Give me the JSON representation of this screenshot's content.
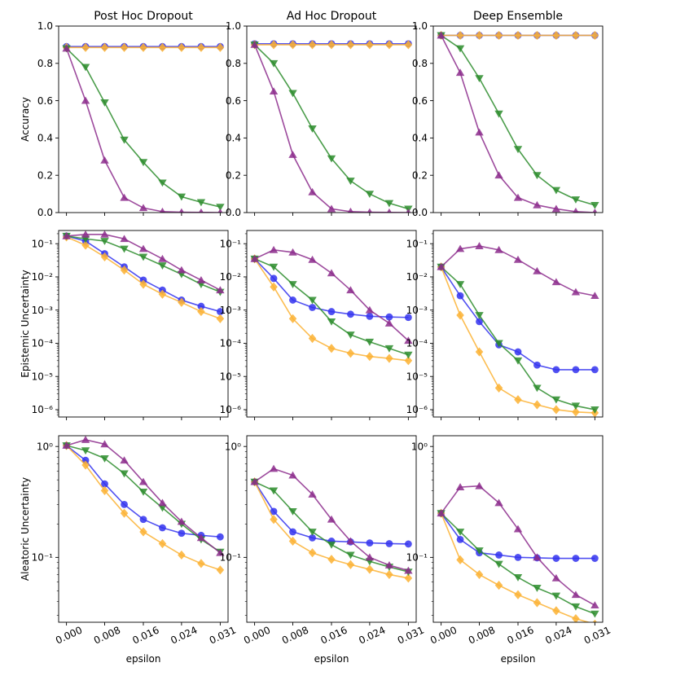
{
  "chart_data": {
    "type": "line",
    "layout": "3x3 grid, columns share x-axis",
    "x": [
      0.0,
      0.0039,
      0.0078,
      0.0118,
      0.0157,
      0.0196,
      0.0235,
      0.0275,
      0.0314
    ],
    "xticks": [
      0.0,
      0.0078,
      0.0157,
      0.0235,
      0.0314
    ],
    "xtick_labels": [
      "0.000",
      "0.008",
      "0.016",
      "0.024",
      "0.031"
    ],
    "xlabel": "epsilon",
    "xlim": [
      -0.0016,
      0.033
    ],
    "columns": [
      "Post Hoc Dropout",
      "Ad Hoc Dropout",
      "Deep Ensemble"
    ],
    "series_styles": [
      {
        "name": "series-blue",
        "color": "#3333ee",
        "marker": "circle"
      },
      {
        "name": "series-orange",
        "color": "#fbb233",
        "marker": "diamond"
      },
      {
        "name": "series-green",
        "color": "#2c8c2c",
        "marker": "triangle-down"
      },
      {
        "name": "series-purple",
        "color": "#8c2c8c",
        "marker": "triangle-up"
      }
    ],
    "rows": [
      {
        "ylabel": "Accuracy",
        "scale": "linear",
        "ylim": [
          0.0,
          1.0
        ],
        "yticks": [
          0.0,
          0.2,
          0.4,
          0.6,
          0.8,
          1.0
        ],
        "ytick_labels": [
          "0.0",
          "0.2",
          "0.4",
          "0.6",
          "0.8",
          "1.0"
        ],
        "panels": [
          {
            "series": [
              [
                0.89,
                0.89,
                0.89,
                0.89,
                0.89,
                0.89,
                0.89,
                0.89,
                0.89
              ],
              [
                0.885,
                0.885,
                0.885,
                0.885,
                0.885,
                0.885,
                0.885,
                0.885,
                0.885
              ],
              [
                0.88,
                0.78,
                0.59,
                0.39,
                0.27,
                0.16,
                0.085,
                0.055,
                0.03
              ],
              [
                0.88,
                0.6,
                0.28,
                0.08,
                0.025,
                0.005,
                0.002,
                0.001,
                0.0
              ]
            ]
          },
          {
            "series": [
              [
                0.905,
                0.905,
                0.905,
                0.905,
                0.905,
                0.905,
                0.905,
                0.905,
                0.905
              ],
              [
                0.9,
                0.9,
                0.9,
                0.9,
                0.9,
                0.9,
                0.9,
                0.9,
                0.9
              ],
              [
                0.9,
                0.8,
                0.64,
                0.45,
                0.29,
                0.17,
                0.1,
                0.05,
                0.02
              ],
              [
                0.9,
                0.65,
                0.31,
                0.11,
                0.02,
                0.005,
                0.002,
                0.001,
                0.0
              ]
            ]
          },
          {
            "series": [
              [
                0.95,
                0.95,
                0.95,
                0.95,
                0.95,
                0.95,
                0.95,
                0.95,
                0.95
              ],
              [
                0.95,
                0.95,
                0.95,
                0.95,
                0.95,
                0.95,
                0.95,
                0.95,
                0.95
              ],
              [
                0.95,
                0.88,
                0.72,
                0.53,
                0.34,
                0.2,
                0.12,
                0.07,
                0.04
              ],
              [
                0.95,
                0.75,
                0.43,
                0.2,
                0.08,
                0.04,
                0.02,
                0.005,
                0.0
              ]
            ]
          }
        ]
      },
      {
        "ylabel": "Epistemic Uncertainty",
        "scale": "log",
        "ylim": [
          6e-07,
          0.25
        ],
        "yticks": [
          1e-06,
          1e-05,
          0.0001,
          0.001,
          0.01,
          0.1
        ],
        "ytick_labels": [
          "10⁻⁶",
          "10⁻⁵",
          "10⁻⁴",
          "10⁻³",
          "10⁻²",
          "10⁻¹"
        ],
        "panels": [
          {
            "series": [
              [
                0.17,
                0.12,
                0.05,
                0.02,
                0.008,
                0.004,
                0.002,
                0.0013,
                0.0009
              ],
              [
                0.16,
                0.09,
                0.04,
                0.016,
                0.006,
                0.003,
                0.0017,
                0.0009,
                0.00055
              ],
              [
                0.17,
                0.14,
                0.12,
                0.07,
                0.04,
                0.022,
                0.012,
                0.006,
                0.0035
              ],
              [
                0.17,
                0.19,
                0.19,
                0.14,
                0.07,
                0.035,
                0.016,
                0.008,
                0.004
              ]
            ]
          },
          {
            "series": [
              [
                0.035,
                0.009,
                0.002,
                0.0012,
                0.0009,
                0.00075,
                0.00065,
                0.00062,
                0.0006
              ],
              [
                0.035,
                0.005,
                0.00055,
                0.00014,
                7e-05,
                5e-05,
                4e-05,
                3.5e-05,
                3e-05
              ],
              [
                0.035,
                0.02,
                0.006,
                0.002,
                0.00045,
                0.00018,
                0.00011,
                7e-05,
                4.5e-05
              ],
              [
                0.035,
                0.065,
                0.055,
                0.033,
                0.013,
                0.004,
                0.001,
                0.0004,
                0.00012
              ]
            ]
          },
          {
            "series": [
              [
                0.02,
                0.0027,
                0.00045,
                9e-05,
                5.5e-05,
                2.2e-05,
                1.6e-05,
                1.6e-05,
                1.6e-05
              ],
              [
                0.02,
                0.0007,
                5.5e-05,
                4.5e-06,
                2e-06,
                1.4e-06,
                1e-06,
                8.5e-07,
                8e-07
              ],
              [
                0.02,
                0.006,
                0.0007,
                0.0001,
                3e-05,
                4.5e-06,
                2e-06,
                1.3e-06,
                1e-06
              ],
              [
                0.02,
                0.07,
                0.085,
                0.065,
                0.033,
                0.015,
                0.007,
                0.0035,
                0.0027
              ]
            ]
          }
        ]
      },
      {
        "ylabel": "Aleatoric Uncertainty",
        "scale": "log",
        "ylim": [
          0.026,
          1.25
        ],
        "yticks": [
          0.1,
          1.0
        ],
        "ytick_labels": [
          "10⁻¹",
          "10⁰"
        ],
        "panels": [
          {
            "series": [
              [
                1.02,
                0.75,
                0.46,
                0.3,
                0.22,
                0.185,
                0.165,
                0.158,
                0.153
              ],
              [
                1.02,
                0.68,
                0.4,
                0.25,
                0.17,
                0.133,
                0.105,
                0.088,
                0.077
              ],
              [
                1.02,
                0.92,
                0.78,
                0.57,
                0.39,
                0.28,
                0.2,
                0.145,
                0.112
              ],
              [
                1.02,
                1.15,
                1.05,
                0.75,
                0.48,
                0.31,
                0.21,
                0.15,
                0.11
              ]
            ]
          },
          {
            "series": [
              [
                0.48,
                0.26,
                0.17,
                0.15,
                0.14,
                0.138,
                0.135,
                0.133,
                0.132
              ],
              [
                0.48,
                0.22,
                0.14,
                0.11,
                0.096,
                0.086,
                0.078,
                0.07,
                0.065
              ],
              [
                0.48,
                0.4,
                0.26,
                0.17,
                0.13,
                0.105,
                0.092,
                0.082,
                0.074
              ],
              [
                0.48,
                0.63,
                0.55,
                0.37,
                0.22,
                0.14,
                0.1,
                0.085,
                0.076
              ]
            ]
          },
          {
            "series": [
              [
                0.25,
                0.145,
                0.11,
                0.105,
                0.1,
                0.099,
                0.098,
                0.098,
                0.098
              ],
              [
                0.25,
                0.095,
                0.07,
                0.056,
                0.046,
                0.039,
                0.033,
                0.028,
                0.025
              ],
              [
                0.25,
                0.17,
                0.115,
                0.087,
                0.066,
                0.053,
                0.045,
                0.036,
                0.031
              ],
              [
                0.25,
                0.43,
                0.44,
                0.31,
                0.18,
                0.1,
                0.065,
                0.046,
                0.037
              ]
            ]
          }
        ]
      }
    ]
  }
}
